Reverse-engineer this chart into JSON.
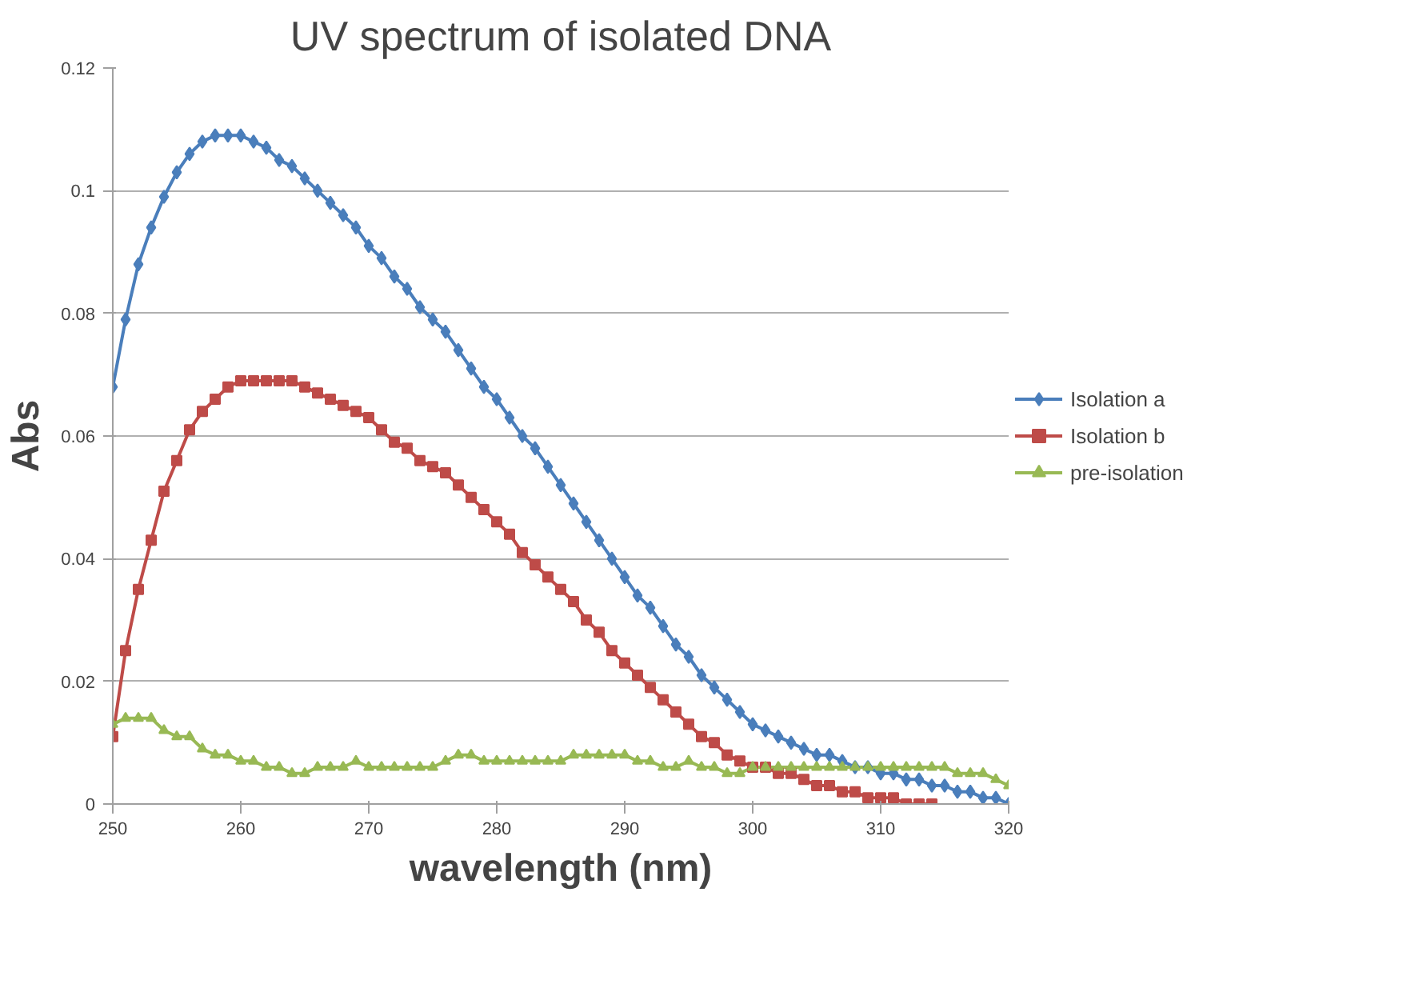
{
  "chart_data": {
    "type": "line",
    "title": "UV spectrum of isolated DNA",
    "xlabel": "wavelength (nm)",
    "ylabel": "Abs",
    "x": [
      250,
      251,
      252,
      253,
      254,
      255,
      256,
      257,
      258,
      259,
      260,
      261,
      262,
      263,
      264,
      265,
      266,
      267,
      268,
      269,
      270,
      271,
      272,
      273,
      274,
      275,
      276,
      277,
      278,
      279,
      280,
      281,
      282,
      283,
      284,
      285,
      286,
      287,
      288,
      289,
      290,
      291,
      292,
      293,
      294,
      295,
      296,
      297,
      298,
      299,
      300,
      301,
      302,
      303,
      304,
      305,
      306,
      307,
      308,
      309,
      310,
      311,
      312,
      313,
      314,
      315,
      316,
      317,
      318,
      319,
      320
    ],
    "series": [
      {
        "name": "Isolation a",
        "color": "#4a7ebb",
        "marker": "diamond",
        "values": [
          0.068,
          0.079,
          0.088,
          0.094,
          0.099,
          0.103,
          0.106,
          0.108,
          0.109,
          0.109,
          0.109,
          0.108,
          0.107,
          0.105,
          0.104,
          0.102,
          0.1,
          0.098,
          0.096,
          0.094,
          0.091,
          0.089,
          0.086,
          0.084,
          0.081,
          0.079,
          0.077,
          0.074,
          0.071,
          0.068,
          0.066,
          0.063,
          0.06,
          0.058,
          0.055,
          0.052,
          0.049,
          0.046,
          0.043,
          0.04,
          0.037,
          0.034,
          0.032,
          0.029,
          0.026,
          0.024,
          0.021,
          0.019,
          0.017,
          0.015,
          0.013,
          0.012,
          0.011,
          0.01,
          0.009,
          0.008,
          0.008,
          0.007,
          0.006,
          0.006,
          0.005,
          0.005,
          0.004,
          0.004,
          0.003,
          0.003,
          0.002,
          0.002,
          0.001,
          0.001,
          0.0
        ]
      },
      {
        "name": "Isolation b",
        "color": "#be4b48",
        "marker": "square",
        "x": [
          250,
          251,
          252,
          253,
          254,
          255,
          256,
          257,
          258,
          259,
          260,
          261,
          262,
          263,
          264,
          265,
          266,
          267,
          268,
          269,
          270,
          271,
          272,
          273,
          274,
          275,
          276,
          277,
          278,
          279,
          280,
          281,
          282,
          283,
          284,
          285,
          286,
          287,
          288,
          289,
          290,
          291,
          292,
          293,
          294,
          295,
          296,
          297,
          298,
          299,
          300,
          301,
          302,
          303,
          304,
          305,
          306,
          307,
          308,
          309,
          310,
          311,
          312,
          313,
          314
        ],
        "values": [
          0.011,
          0.025,
          0.035,
          0.043,
          0.051,
          0.056,
          0.061,
          0.064,
          0.066,
          0.068,
          0.069,
          0.069,
          0.069,
          0.069,
          0.069,
          0.068,
          0.067,
          0.066,
          0.065,
          0.064,
          0.063,
          0.061,
          0.059,
          0.058,
          0.056,
          0.055,
          0.054,
          0.052,
          0.05,
          0.048,
          0.046,
          0.044,
          0.041,
          0.039,
          0.037,
          0.035,
          0.033,
          0.03,
          0.028,
          0.025,
          0.023,
          0.021,
          0.019,
          0.017,
          0.015,
          0.013,
          0.011,
          0.01,
          0.008,
          0.007,
          0.006,
          0.006,
          0.005,
          0.005,
          0.004,
          0.003,
          0.003,
          0.002,
          0.002,
          0.001,
          0.001,
          0.001,
          0.0,
          0.0,
          0.0
        ]
      },
      {
        "name": "pre-isolation",
        "color": "#98b954",
        "marker": "triangle",
        "values": [
          0.013,
          0.014,
          0.014,
          0.014,
          0.012,
          0.011,
          0.011,
          0.009,
          0.008,
          0.008,
          0.007,
          0.007,
          0.006,
          0.006,
          0.005,
          0.005,
          0.006,
          0.006,
          0.006,
          0.007,
          0.006,
          0.006,
          0.006,
          0.006,
          0.006,
          0.006,
          0.007,
          0.008,
          0.008,
          0.007,
          0.007,
          0.007,
          0.007,
          0.007,
          0.007,
          0.007,
          0.008,
          0.008,
          0.008,
          0.008,
          0.008,
          0.007,
          0.007,
          0.006,
          0.006,
          0.007,
          0.006,
          0.006,
          0.005,
          0.005,
          0.006,
          0.006,
          0.006,
          0.006,
          0.006,
          0.006,
          0.006,
          0.006,
          0.006,
          0.006,
          0.006,
          0.006,
          0.006,
          0.006,
          0.006,
          0.006,
          0.005,
          0.005,
          0.005,
          0.004,
          0.003
        ]
      }
    ],
    "xlim": [
      250,
      320
    ],
    "xticks": [
      250,
      260,
      270,
      280,
      290,
      300,
      310,
      320
    ],
    "ylim": [
      0,
      0.12
    ],
    "yticks": [
      0,
      0.02,
      0.04,
      0.06,
      0.08,
      0.1,
      0.12
    ],
    "grid": "y",
    "legend": "right",
    "line_style": "solid"
  }
}
